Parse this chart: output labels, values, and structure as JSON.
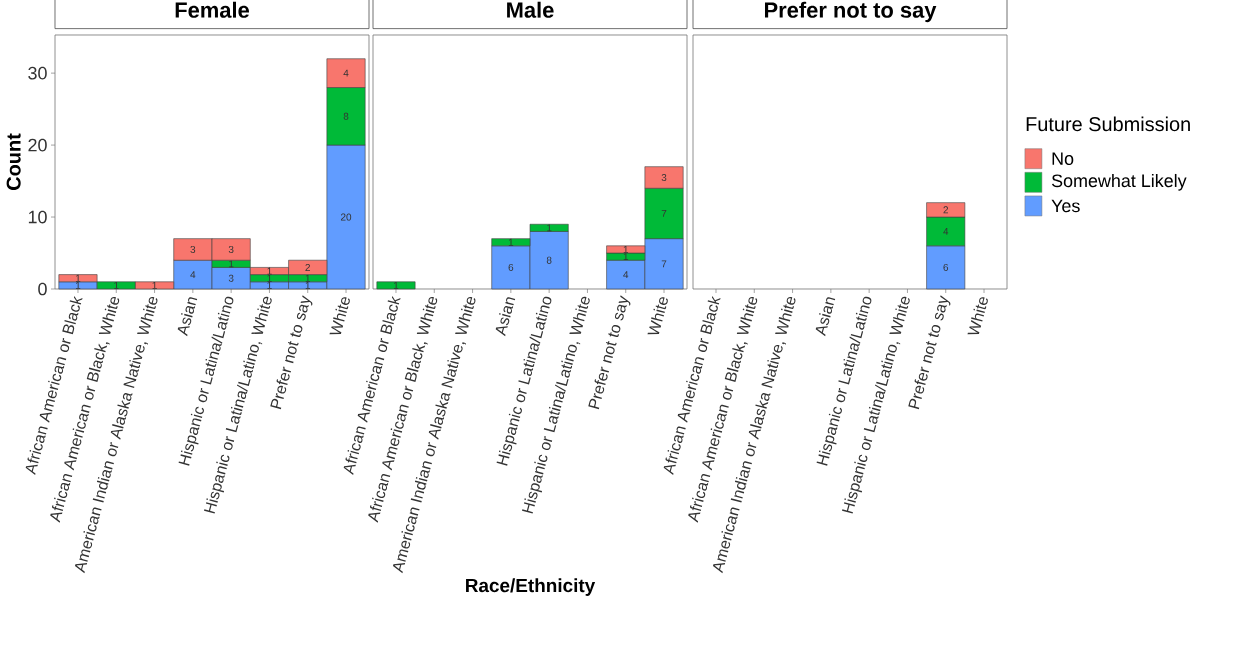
{
  "chart_data": [
    {
      "type": "bar",
      "title": "Female",
      "ylabel": "Count",
      "stacked": true,
      "data_labels": true,
      "legend": false,
      "categories": [
        "African American or Black",
        "African American or Black, White",
        "American Indian or Alaska Native, White",
        "Asian",
        "Hispanic or Latina/Latino",
        "Hispanic or Latina/Latino, White",
        "Prefer not to say",
        "White"
      ],
      "ylim": [
        0,
        35.3
      ],
      "yticks": [
        0,
        10,
        20,
        30
      ],
      "series": [
        {
          "color": "#619cff",
          "values": [
            1,
            null,
            null,
            4,
            3,
            1,
            1,
            20
          ]
        },
        {
          "color": "#00ba38",
          "values": [
            null,
            1,
            null,
            null,
            1,
            1,
            1,
            8
          ]
        },
        {
          "color": "#f8766d",
          "values": [
            1,
            null,
            1,
            3,
            3,
            1,
            2,
            4
          ]
        }
      ]
    },
    {
      "type": "bar",
      "title": "Male",
      "xlabel": "Race/Ethnicity",
      "stacked": true,
      "data_labels": true,
      "legend": false,
      "tick_labels": "x",
      "categories": [
        "African American or Black",
        "African American or Black, White",
        "American Indian or Alaska Native, White",
        "Asian",
        "Hispanic or Latina/Latino",
        "Hispanic or Latina/Latino, White",
        "Prefer not to say",
        "White"
      ],
      "ylim": [
        0,
        35.3
      ],
      "yticks": [
        0,
        10,
        20,
        30
      ],
      "series": [
        {
          "color": "#619cff",
          "values": [
            null,
            null,
            null,
            6,
            8,
            null,
            4,
            7
          ]
        },
        {
          "color": "#00ba38",
          "values": [
            1,
            null,
            null,
            1,
            1,
            null,
            1,
            7
          ]
        },
        {
          "color": "#f8766d",
          "values": [
            null,
            null,
            null,
            null,
            null,
            null,
            1,
            3
          ]
        }
      ]
    },
    {
      "type": "bar",
      "title": "Prefer not to say",
      "legend_title": "Future Submission",
      "stacked": true,
      "data_labels": true,
      "legend": "right",
      "tick_labels": "x",
      "categories": [
        "African American or Black",
        "African American or Black, White",
        "American Indian or Alaska Native, White",
        "Asian",
        "Hispanic or Latina/Latino",
        "Hispanic or Latina/Latino, White",
        "Prefer not to say",
        "White"
      ],
      "ylim": [
        0,
        35.3
      ],
      "yticks": [
        0,
        10,
        20,
        30
      ],
      "series": [
        {
          "name": "Yes",
          "color": "#619cff",
          "values": [
            null,
            null,
            null,
            null,
            null,
            null,
            6,
            null
          ]
        },
        {
          "name": "Somewhat Likely",
          "color": "#00ba38",
          "values": [
            null,
            null,
            null,
            null,
            null,
            null,
            4,
            null
          ]
        },
        {
          "name": "No",
          "color": "#f8766d",
          "values": [
            null,
            null,
            null,
            null,
            null,
            null,
            2,
            null
          ]
        }
      ]
    }
  ]
}
